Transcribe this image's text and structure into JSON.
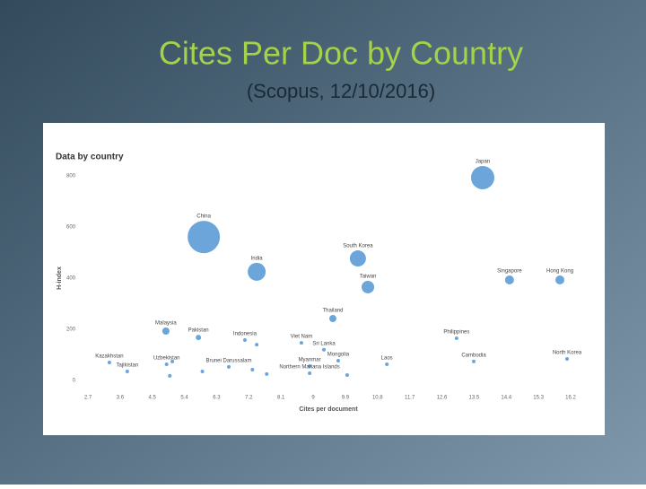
{
  "slide_title": "Cites Per Doc by Country",
  "slide_subtitle": "(Scopus, 12/10/2016)",
  "chart_data": {
    "type": "bubble",
    "title": "Data by country",
    "x_label": "Cites per document",
    "y_label": "H-index",
    "color": "#5b9bd5",
    "xlim": [
      2.7,
      16.2
    ],
    "ylim": [
      0,
      800
    ],
    "xticks": [
      2.7,
      3.6,
      4.5,
      5.4,
      6.3,
      7.2,
      8.1,
      9,
      9.9,
      10.8,
      11.7,
      12.6,
      13.5,
      14.4,
      15.3,
      16.2
    ],
    "yticks": [
      0,
      200,
      400,
      600,
      800
    ],
    "names": [
      "Japan",
      "China",
      "India",
      "South Korea",
      "Taiwan",
      "Singapore",
      "Hong Kong",
      "Thailand",
      "Malaysia",
      "Pakistan",
      "Indonesia",
      "Viet Nam",
      "Sri Lanka",
      "Mongolia",
      "Philippines",
      "Cambodia",
      "North Korea",
      "Laos",
      "Myanmar",
      "Northern Mariana Islands",
      "Kazakhstan",
      "Tajikistan",
      "Uzbekistan",
      "Brunei Darussalam",
      null,
      null,
      null,
      null,
      null,
      null,
      null
    ],
    "x": [
      13.74,
      5.94,
      7.42,
      10.25,
      10.53,
      14.49,
      15.9,
      9.55,
      4.88,
      5.79,
      7.09,
      8.67,
      9.3,
      9.7,
      13.01,
      13.49,
      16.1,
      11.06,
      8.9,
      8.9,
      3.3,
      3.8,
      4.9,
      6.64,
      4.99,
      5.9,
      7.3,
      7.7,
      5.06,
      9.95,
      7.42
    ],
    "y": [
      793,
      561,
      425,
      477,
      365,
      393,
      393,
      242,
      193,
      168,
      158,
      147,
      120,
      77,
      165,
      74,
      84,
      63,
      56,
      28,
      70,
      35,
      63,
      53,
      18,
      35,
      42,
      25,
      74,
      21,
      140
    ],
    "sizes": [
      169,
      324,
      100,
      81,
      49,
      25,
      25,
      16,
      16,
      9,
      4,
      4,
      4,
      4,
      4,
      4,
      4,
      4,
      4,
      4,
      4,
      4,
      4,
      4,
      4,
      4,
      4,
      4,
      4,
      4,
      4
    ]
  }
}
